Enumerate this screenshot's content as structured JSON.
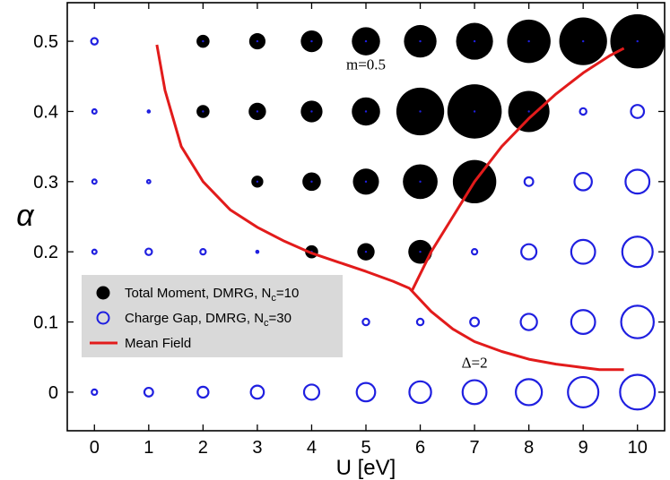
{
  "chart_data": {
    "type": "scatter",
    "xlabel": "U [eV]",
    "ylabel": "α",
    "xlim": [
      -0.5,
      10.5
    ],
    "ylim": [
      -0.055,
      0.555
    ],
    "x_ticks": [
      "0",
      "1",
      "2",
      "3",
      "4",
      "5",
      "6",
      "7",
      "8",
      "9",
      "10"
    ],
    "y_ticks": [
      "0",
      "0.1",
      "0.2",
      "0.3",
      "0.4",
      "0.5"
    ],
    "grid": false,
    "legend_position": "lower-left",
    "colors": {
      "moment": "#000000",
      "gap": "#1f1fe0",
      "mean_field": "#e21b1b",
      "legend_bg": "#d9d9d9"
    },
    "annotations": [
      {
        "text": "m=0.5",
        "x": 5.0,
        "y": 0.46
      },
      {
        "text": "Δ=2",
        "x": 7.0,
        "y": 0.035
      }
    ],
    "series": [
      {
        "name": "Total Moment, DMRG, N",
        "name_sub": "c",
        "name_suffix": "=10",
        "kind": "moment",
        "points": [
          {
            "x": 2,
            "y": 0.5,
            "v": 0.12
          },
          {
            "x": 3,
            "y": 0.5,
            "v": 0.15
          },
          {
            "x": 4,
            "y": 0.5,
            "v": 0.2
          },
          {
            "x": 5,
            "y": 0.5,
            "v": 0.26
          },
          {
            "x": 6,
            "y": 0.5,
            "v": 0.3
          },
          {
            "x": 7,
            "y": 0.5,
            "v": 0.34
          },
          {
            "x": 8,
            "y": 0.5,
            "v": 0.4
          },
          {
            "x": 9,
            "y": 0.5,
            "v": 0.44
          },
          {
            "x": 10,
            "y": 0.5,
            "v": 0.5
          },
          {
            "x": 2,
            "y": 0.4,
            "v": 0.12
          },
          {
            "x": 3,
            "y": 0.4,
            "v": 0.16
          },
          {
            "x": 4,
            "y": 0.4,
            "v": 0.2
          },
          {
            "x": 5,
            "y": 0.4,
            "v": 0.26
          },
          {
            "x": 6,
            "y": 0.4,
            "v": 0.44
          },
          {
            "x": 7,
            "y": 0.4,
            "v": 0.5
          },
          {
            "x": 8,
            "y": 0.4,
            "v": 0.38
          },
          {
            "x": 3,
            "y": 0.3,
            "v": 0.11
          },
          {
            "x": 4,
            "y": 0.3,
            "v": 0.17
          },
          {
            "x": 5,
            "y": 0.3,
            "v": 0.24
          },
          {
            "x": 6,
            "y": 0.3,
            "v": 0.32
          },
          {
            "x": 7,
            "y": 0.3,
            "v": 0.4
          },
          {
            "x": 4,
            "y": 0.2,
            "v": 0.12
          },
          {
            "x": 5,
            "y": 0.2,
            "v": 0.16
          },
          {
            "x": 6,
            "y": 0.2,
            "v": 0.22
          }
        ]
      },
      {
        "name": "Charge Gap, DMRG, N",
        "name_sub": "c",
        "name_suffix": "=30",
        "kind": "gap",
        "points": [
          {
            "x": 0,
            "y": 0.5,
            "v": 0.06
          },
          {
            "x": 0,
            "y": 0.4,
            "v": 0.04
          },
          {
            "x": 0,
            "y": 0.3,
            "v": 0.04
          },
          {
            "x": 0,
            "y": 0.2,
            "v": 0.04
          },
          {
            "x": 0,
            "y": 0.1,
            "v": 0.03
          },
          {
            "x": 0,
            "y": 0.0,
            "v": 0.05
          },
          {
            "x": 1,
            "y": 0.4,
            "v": 0.02
          },
          {
            "x": 1,
            "y": 0.3,
            "v": 0.03
          },
          {
            "x": 1,
            "y": 0.2,
            "v": 0.06
          },
          {
            "x": 1,
            "y": 0.0,
            "v": 0.08
          },
          {
            "x": 2,
            "y": 0.2,
            "v": 0.05
          },
          {
            "x": 2,
            "y": 0.0,
            "v": 0.1
          },
          {
            "x": 3,
            "y": 0.2,
            "v": 0.02
          },
          {
            "x": 3,
            "y": 0.0,
            "v": 0.12
          },
          {
            "x": 4,
            "y": 0.0,
            "v": 0.14
          },
          {
            "x": 5,
            "y": 0.1,
            "v": 0.06
          },
          {
            "x": 5,
            "y": 0.0,
            "v": 0.17
          },
          {
            "x": 6,
            "y": 0.1,
            "v": 0.06
          },
          {
            "x": 6,
            "y": 0.0,
            "v": 0.2
          },
          {
            "x": 7,
            "y": 0.2,
            "v": 0.05
          },
          {
            "x": 7,
            "y": 0.1,
            "v": 0.08
          },
          {
            "x": 7,
            "y": 0.0,
            "v": 0.22
          },
          {
            "x": 8,
            "y": 0.3,
            "v": 0.08
          },
          {
            "x": 8,
            "y": 0.2,
            "v": 0.14
          },
          {
            "x": 8,
            "y": 0.1,
            "v": 0.15
          },
          {
            "x": 8,
            "y": 0.0,
            "v": 0.24
          },
          {
            "x": 9,
            "y": 0.4,
            "v": 0.06
          },
          {
            "x": 9,
            "y": 0.3,
            "v": 0.16
          },
          {
            "x": 9,
            "y": 0.2,
            "v": 0.22
          },
          {
            "x": 9,
            "y": 0.1,
            "v": 0.22
          },
          {
            "x": 9,
            "y": 0.0,
            "v": 0.28
          },
          {
            "x": 10,
            "y": 0.4,
            "v": 0.12
          },
          {
            "x": 10,
            "y": 0.3,
            "v": 0.22
          },
          {
            "x": 10,
            "y": 0.2,
            "v": 0.28
          },
          {
            "x": 10,
            "y": 0.1,
            "v": 0.3
          },
          {
            "x": 10,
            "y": 0.0,
            "v": 0.32
          }
        ]
      },
      {
        "name": "Mean Field",
        "kind": "line",
        "segments": [
          [
            {
              "x": 1.15,
              "y": 0.495
            },
            {
              "x": 1.3,
              "y": 0.43
            },
            {
              "x": 1.6,
              "y": 0.35
            },
            {
              "x": 2.0,
              "y": 0.3
            },
            {
              "x": 2.5,
              "y": 0.26
            },
            {
              "x": 3.0,
              "y": 0.235
            },
            {
              "x": 3.5,
              "y": 0.215
            },
            {
              "x": 4.0,
              "y": 0.198
            },
            {
              "x": 4.5,
              "y": 0.185
            },
            {
              "x": 5.0,
              "y": 0.172
            },
            {
              "x": 5.5,
              "y": 0.158
            },
            {
              "x": 5.8,
              "y": 0.148
            },
            {
              "x": 6.2,
              "y": 0.115
            },
            {
              "x": 6.6,
              "y": 0.09
            },
            {
              "x": 7.0,
              "y": 0.072
            },
            {
              "x": 7.5,
              "y": 0.058
            },
            {
              "x": 8.0,
              "y": 0.047
            },
            {
              "x": 8.5,
              "y": 0.04
            },
            {
              "x": 9.0,
              "y": 0.035
            },
            {
              "x": 9.3,
              "y": 0.032
            },
            {
              "x": 9.75,
              "y": 0.032
            }
          ],
          [
            {
              "x": 5.85,
              "y": 0.145
            },
            {
              "x": 6.2,
              "y": 0.2
            },
            {
              "x": 6.6,
              "y": 0.25
            },
            {
              "x": 7.0,
              "y": 0.3
            },
            {
              "x": 7.5,
              "y": 0.35
            },
            {
              "x": 8.0,
              "y": 0.39
            },
            {
              "x": 8.5,
              "y": 0.425
            },
            {
              "x": 9.0,
              "y": 0.455
            },
            {
              "x": 9.5,
              "y": 0.48
            },
            {
              "x": 9.75,
              "y": 0.49
            }
          ]
        ]
      }
    ]
  }
}
